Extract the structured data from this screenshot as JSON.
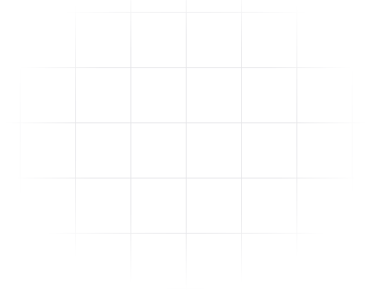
{
  "background": {
    "pattern": "grid",
    "page_color": "#ffffff",
    "line_color": "#e4e4e7",
    "fade": "radial"
  }
}
